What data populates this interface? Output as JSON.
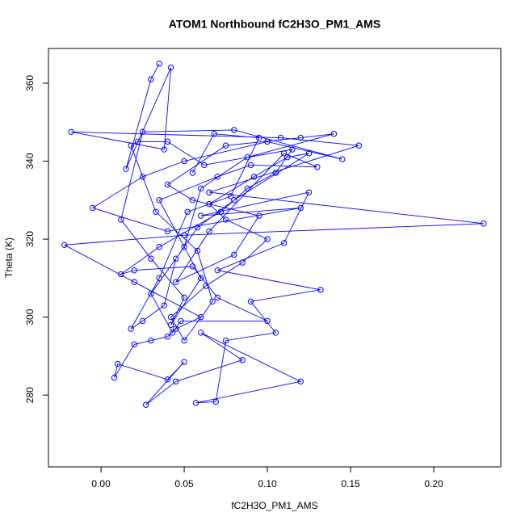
{
  "chart_data": {
    "type": "scatter",
    "mode": "points-and-lines",
    "title": "ATOM1 Northbound fC2H3O_PM1_AMS",
    "x_label": "fC2H3O_PM1_AMS",
    "y_label": "Theta (K)",
    "xlim": [
      -0.0316,
      0.2403
    ],
    "ylim": [
      261.6,
      368.9
    ],
    "xticks": [
      {
        "value": 0,
        "label": "0.00"
      },
      {
        "value": 0.05,
        "label": "0.05"
      },
      {
        "value": 0.1,
        "label": "0.10"
      },
      {
        "value": 0.15,
        "label": "0.15"
      },
      {
        "value": 0.2,
        "label": "0.20"
      }
    ],
    "yticks": [
      280,
      300,
      320,
      340,
      360
    ],
    "grid": false,
    "series": [
      {
        "color": "#0000ff",
        "x": [
          0.035,
          0.03,
          0.015,
          0.042,
          0.038,
          -0.018,
          0.108,
          0.155,
          0.065,
          0.23,
          0.05,
          -0.022,
          0.02,
          0.06,
          0.045,
          0.04,
          0.03,
          0.02,
          0.008,
          0.01,
          0.04,
          0.05,
          0.027,
          0.045,
          0.085,
          0.06,
          0.12,
          0.057,
          0.069,
          0.075,
          0.105,
          0.09,
          0.132,
          0.07,
          0.11,
          0.125,
          0.06,
          0.12,
          0.04,
          -0.005,
          0.025,
          0.05,
          0.1,
          0.145,
          0.08,
          0.025,
          0.012,
          0.03,
          0.05,
          0.042,
          0.06,
          0.035,
          0.07,
          0.09,
          0.13,
          0.11,
          0.065,
          0.045,
          0.08,
          0.095,
          0.055,
          0.04,
          0.075,
          0.12,
          0.14,
          0.088,
          0.06,
          0.05,
          0.03,
          0.043,
          0.048,
          0.1,
          0.07,
          0.055,
          0.02,
          0.012,
          0.035,
          0.072,
          0.088,
          0.105,
          0.115,
          0.062,
          0.04,
          0.022,
          0.018,
          0.033,
          0.058,
          0.067,
          0.05,
          0.042,
          0.063,
          0.085,
          0.1,
          0.075,
          0.065,
          0.092,
          0.112,
          0.125,
          0.08,
          0.058,
          0.045,
          0.038,
          0.025,
          0.018,
          0.035,
          0.052,
          0.078,
          0.095,
          0.068,
          0.055
        ],
        "values": [
          365,
          361,
          338,
          364,
          343,
          347.5,
          346,
          344,
          332,
          324,
          321,
          318.5,
          309,
          300,
          297,
          295,
          294,
          293,
          284.5,
          288,
          284,
          288.5,
          277.5,
          283.5,
          289,
          296,
          283.5,
          278,
          278.3,
          294,
          296,
          304,
          307,
          312,
          319,
          332,
          326,
          328,
          322,
          328,
          336,
          340,
          345,
          340.5,
          348,
          347.5,
          325,
          315,
          305,
          298,
          310,
          330,
          336,
          339,
          338.5,
          342,
          322,
          309,
          316,
          326,
          330,
          334,
          344,
          346,
          347,
          341,
          333,
          318,
          306,
          296,
          299,
          299,
          305,
          313,
          312,
          311,
          318,
          327,
          333,
          337,
          343,
          339,
          345,
          345,
          344,
          327,
          317,
          304,
          294,
          300,
          308,
          314,
          320,
          325,
          329,
          336,
          341,
          342,
          330,
          323,
          315,
          303,
          299,
          297,
          310,
          327,
          331,
          346,
          347,
          337
        ]
      }
    ]
  }
}
